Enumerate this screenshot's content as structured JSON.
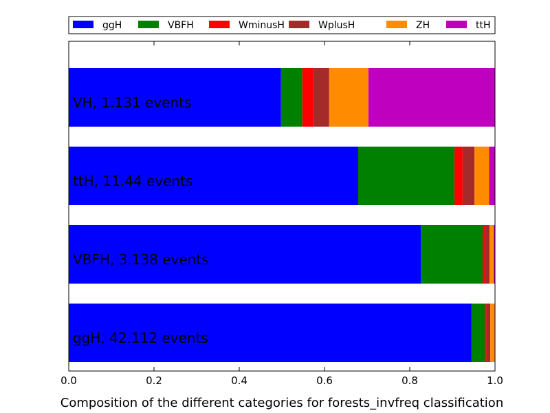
{
  "chart_data": {
    "type": "bar",
    "orientation": "horizontal",
    "stacked": true,
    "xlabel": "Composition of the different categories for forests_invfreq classification",
    "xlim": [
      0,
      1.0
    ],
    "xticks": [
      "0.0",
      "0.2",
      "0.4",
      "0.6",
      "0.8",
      "1.0"
    ],
    "categories": [
      "ggH, 42.112 events",
      "VBFH, 3.138 events",
      "ttH, 11.44 events",
      "VH, 1.131 events"
    ],
    "series": [
      {
        "name": "ggH",
        "color": "#0000ff",
        "values": [
          0.945,
          0.826,
          0.679,
          0.498
        ]
      },
      {
        "name": "VBFH",
        "color": "#008000",
        "values": [
          0.031,
          0.145,
          0.226,
          0.05
        ]
      },
      {
        "name": "WminusH",
        "color": "#ff0000",
        "values": [
          0.004,
          0.005,
          0.019,
          0.025
        ]
      },
      {
        "name": "WplusH",
        "color": "#a52a2a",
        "values": [
          0.009,
          0.011,
          0.028,
          0.038
        ]
      },
      {
        "name": "ZH",
        "color": "#ff8c00",
        "values": [
          0.01,
          0.01,
          0.034,
          0.092
        ]
      },
      {
        "name": "ttH",
        "color": "#bf00bf",
        "values": [
          0.001,
          0.003,
          0.014,
          0.297
        ]
      }
    ],
    "legend_position": "top",
    "grid": false
  }
}
